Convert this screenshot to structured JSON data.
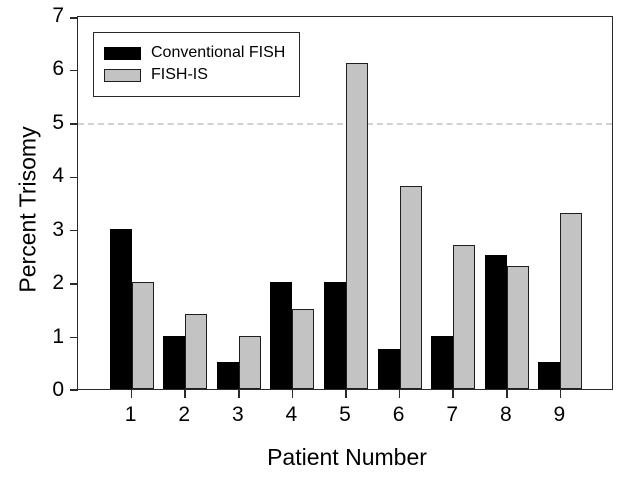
{
  "chart_data": {
    "type": "bar",
    "title": "",
    "xlabel": "Patient Number",
    "ylabel": "Percent Trisomy",
    "categories": [
      "1",
      "2",
      "3",
      "4",
      "5",
      "6",
      "7",
      "8",
      "9"
    ],
    "series": [
      {
        "name": "Conventional FISH",
        "color": "#000000",
        "values": [
          3.0,
          1.0,
          0.5,
          2.0,
          2.0,
          0.75,
          1.0,
          2.5,
          0.5
        ]
      },
      {
        "name": "FISH-IS",
        "color": "#c3c3c3",
        "values": [
          2.0,
          1.4,
          1.0,
          1.5,
          6.1,
          3.8,
          2.7,
          2.3,
          3.3
        ]
      }
    ],
    "ylim": [
      0,
      7
    ],
    "yticks": [
      0,
      1,
      2,
      3,
      4,
      5,
      6,
      7
    ],
    "reference_line": {
      "value": 5,
      "style": "dashed",
      "color": "#d2d2d2"
    },
    "legend_position": "top-left",
    "grid": false
  }
}
